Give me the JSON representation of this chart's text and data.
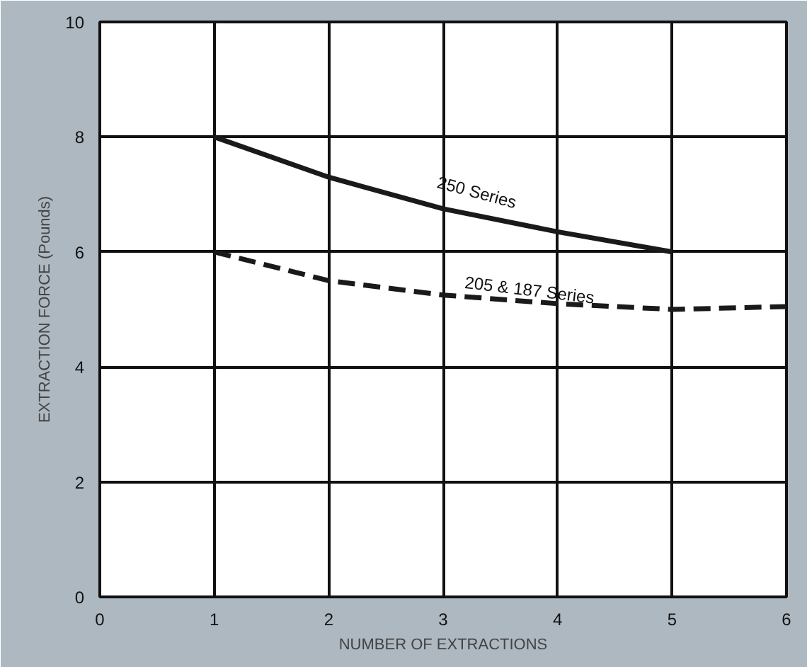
{
  "chart_data": {
    "type": "line",
    "xlabel": "NUMBER OF EXTRACTIONS",
    "ylabel": "EXTRACTION FORCE (Pounds)",
    "xlim": [
      0,
      6
    ],
    "ylim": [
      0,
      10
    ],
    "xticks": [
      0,
      1,
      2,
      3,
      4,
      5,
      6
    ],
    "yticks": [
      0,
      2,
      4,
      6,
      8,
      10
    ],
    "grid": true,
    "legend": false,
    "series": [
      {
        "name": "250 Series",
        "color": "#1a1a1a",
        "line_style": "solid",
        "x": [
          1,
          2,
          3,
          4,
          5
        ],
        "values": [
          8,
          7.3,
          6.75,
          6.35,
          6.0
        ]
      },
      {
        "name": "205 & 187 Series",
        "color": "#1a1a1a",
        "line_style": "dashed",
        "x": [
          1,
          2,
          3,
          4,
          5,
          6
        ],
        "values": [
          6,
          5.5,
          5.25,
          5.1,
          5.0,
          5.05
        ]
      }
    ]
  }
}
